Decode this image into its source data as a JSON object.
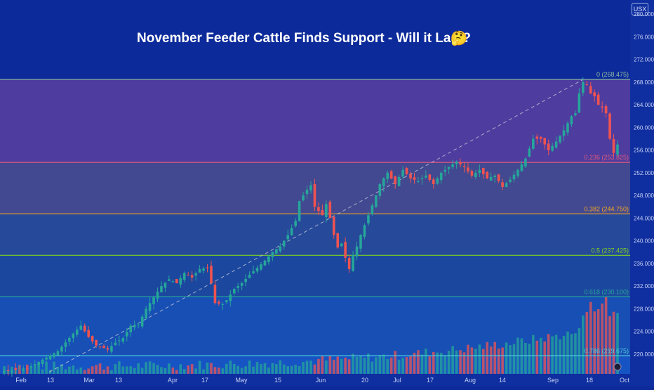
{
  "title": "November Feeder Cattle Finds Support - Will it Last?",
  "title_emoji": "🤔",
  "currency_badge": "USX",
  "colors": {
    "background": "#0d2a9a",
    "up": "#26a69a",
    "down": "#ef5350",
    "fib_0": "#8fbf9f",
    "fib_236": "#e05a7a",
    "fib_382": "#f5a623",
    "fib_5": "#7ed321",
    "fib_618": "#26a69a",
    "fib_786": "#4dd0e1"
  },
  "chart_data": {
    "type": "candlestick",
    "title": "November Feeder Cattle Finds Support - Will it Last?",
    "y_ticks": [
      "280.000",
      "276.000",
      "272.000",
      "268.000",
      "264.000",
      "260.000",
      "256.000",
      "252.000",
      "248.000",
      "244.000",
      "240.000",
      "236.000",
      "232.000",
      "228.000",
      "224.000",
      "220.000"
    ],
    "ylim": [
      216.5,
      282.5
    ],
    "x_ticks": [
      "Feb",
      "13",
      "Mar",
      "13",
      "Apr",
      "17",
      "May",
      "15",
      "Jun",
      "20",
      "Jul",
      "17",
      "Aug",
      "14",
      "Sep",
      "18",
      "Oct"
    ],
    "fib_levels": [
      {
        "ratio": "0",
        "price": 268.475,
        "label": "0 (268.475)"
      },
      {
        "ratio": "0.236",
        "price": 253.825,
        "label": "0.236 (253.825)"
      },
      {
        "ratio": "0.382",
        "price": 244.75,
        "label": "0.382 (244.750)"
      },
      {
        "ratio": "0.5",
        "price": 237.425,
        "label": "0.5 (237.425)"
      },
      {
        "ratio": "0.618",
        "price": 230.1,
        "label": "0.618 (230.100)"
      },
      {
        "ratio": "0.786",
        "price": 219.675,
        "label": "0.786 (219.675)"
      }
    ],
    "trend_line": {
      "start_price": 216.8,
      "end_price": 268.475
    },
    "price_path": [
      [
        0,
        217.0
      ],
      [
        6,
        217.4
      ],
      [
        10,
        219.0
      ],
      [
        14,
        220.5
      ],
      [
        18,
        223.6
      ],
      [
        20,
        225.0
      ],
      [
        22,
        223.0
      ],
      [
        24,
        221.5
      ],
      [
        27,
        220.8
      ],
      [
        29,
        222.0
      ],
      [
        31,
        222.8
      ],
      [
        33,
        225.0
      ],
      [
        35,
        225.2
      ],
      [
        37,
        228.0
      ],
      [
        39,
        230.0
      ],
      [
        41,
        232.0
      ],
      [
        43,
        233.2
      ],
      [
        45,
        232.5
      ],
      [
        47,
        234.3
      ],
      [
        49,
        233.5
      ],
      [
        51,
        235.0
      ],
      [
        53,
        235.2
      ],
      [
        54,
        232.5
      ],
      [
        55,
        229.0
      ],
      [
        57,
        228.8
      ],
      [
        58,
        229.5
      ],
      [
        60,
        231.5
      ],
      [
        62,
        232.5
      ],
      [
        64,
        234.0
      ],
      [
        66,
        235.2
      ],
      [
        68,
        236.5
      ],
      [
        70,
        238.0
      ],
      [
        72,
        239.0
      ],
      [
        74,
        241.0
      ],
      [
        76,
        243.5
      ],
      [
        77,
        247.0
      ],
      [
        79,
        249.0
      ],
      [
        80,
        249.8
      ],
      [
        81,
        246.0
      ],
      [
        83,
        244.5
      ],
      [
        84,
        246.5
      ],
      [
        85,
        244.0
      ],
      [
        86,
        241.0
      ],
      [
        87,
        238.8
      ],
      [
        88,
        239.5
      ],
      [
        89,
        237.0
      ],
      [
        90,
        235.0
      ],
      [
        91,
        237.5
      ],
      [
        92,
        239.0
      ],
      [
        93,
        241.0
      ],
      [
        95,
        244.5
      ],
      [
        97,
        248.0
      ],
      [
        98,
        250.0
      ],
      [
        100,
        252.0
      ],
      [
        102,
        250.0
      ],
      [
        104,
        252.5
      ],
      [
        106,
        251.0
      ],
      [
        108,
        250.5
      ],
      [
        110,
        251.5
      ],
      [
        112,
        250.0
      ],
      [
        114,
        252.0
      ],
      [
        116,
        253.0
      ],
      [
        118,
        254.0
      ],
      [
        120,
        253.0
      ],
      [
        122,
        251.5
      ],
      [
        124,
        252.5
      ],
      [
        126,
        251.0
      ],
      [
        128,
        251.5
      ],
      [
        130,
        249.5
      ],
      [
        132,
        250.8
      ],
      [
        134,
        252.5
      ],
      [
        136,
        254.5
      ],
      [
        138,
        258.0
      ],
      [
        140,
        258.0
      ],
      [
        142,
        256.0
      ],
      [
        144,
        257.5
      ],
      [
        146,
        259.5
      ],
      [
        148,
        262.0
      ],
      [
        149,
        262.5
      ],
      [
        150,
        266.0
      ],
      [
        151,
        268.0
      ],
      [
        152,
        267.5
      ],
      [
        153,
        266.0
      ],
      [
        154,
        265.5
      ],
      [
        155,
        264.0
      ],
      [
        156,
        263.5
      ],
      [
        157,
        262.5
      ],
      [
        158,
        258.0
      ],
      [
        159,
        255.5
      ],
      [
        160,
        257.0
      ]
    ],
    "volume_scale": "relative"
  }
}
